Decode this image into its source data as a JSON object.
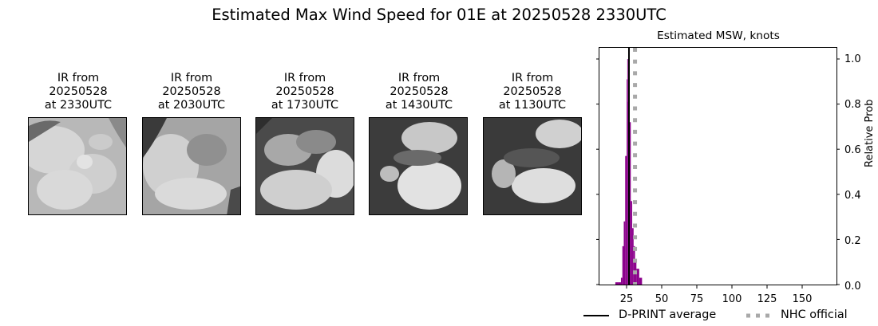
{
  "figure": {
    "title": "Estimated Max Wind Speed for 01E at 20250528 2330UTC"
  },
  "thumbnails": [
    {
      "line1": "IR from",
      "line2": "20250528",
      "line3": "at 2330UTC"
    },
    {
      "line1": "IR from",
      "line2": "20250528",
      "line3": "at 2030UTC"
    },
    {
      "line1": "IR from",
      "line2": "20250528",
      "line3": "at 1730UTC"
    },
    {
      "line1": "IR from",
      "line2": "20250528",
      "line3": "at 1430UTC"
    },
    {
      "line1": "IR from",
      "line2": "20250528",
      "line3": "at 1130UTC"
    }
  ],
  "chart_data": {
    "type": "bar",
    "title": "Estimated MSW, knots",
    "xlabel": "",
    "ylabel": "Relative Prob",
    "xlim": [
      5,
      175
    ],
    "ylim": [
      0,
      1.05
    ],
    "xticks": [
      25,
      50,
      75,
      100,
      125,
      150
    ],
    "xtick_labels": [
      "25",
      "50",
      "75",
      "100",
      "125",
      "150"
    ],
    "yticks": [
      0.0,
      0.2,
      0.4,
      0.6,
      0.8,
      1.0
    ],
    "ytick_labels": [
      "0.0",
      "0.2",
      "0.4",
      "0.6",
      "0.8",
      "1.0"
    ],
    "yaxis_position": "right",
    "grid": false,
    "bar_color": "#8b008b",
    "bins": [
      {
        "x0": 17,
        "x1": 19,
        "value": 0.01
      },
      {
        "x0": 19,
        "x1": 21,
        "value": 0.01
      },
      {
        "x0": 21,
        "x1": 22,
        "value": 0.03
      },
      {
        "x0": 22,
        "x1": 23,
        "value": 0.17
      },
      {
        "x0": 23,
        "x1": 24,
        "value": 0.28
      },
      {
        "x0": 24,
        "x1": 25,
        "value": 0.57
      },
      {
        "x0": 25,
        "x1": 25.5,
        "value": 0.91
      },
      {
        "x0": 25.5,
        "x1": 26,
        "value": 1.0
      },
      {
        "x0": 26,
        "x1": 27,
        "value": 0.81
      },
      {
        "x0": 27,
        "x1": 28,
        "value": 0.72
      },
      {
        "x0": 28,
        "x1": 29,
        "value": 0.37
      },
      {
        "x0": 29,
        "x1": 30,
        "value": 0.25
      },
      {
        "x0": 30,
        "x1": 31,
        "value": 0.17
      },
      {
        "x0": 31,
        "x1": 32,
        "value": 0.11
      },
      {
        "x0": 32,
        "x1": 34,
        "value": 0.07
      },
      {
        "x0": 34,
        "x1": 36,
        "value": 0.03
      }
    ],
    "lines": [
      {
        "name": "D-PRINT average",
        "x": 26.7,
        "style": "solid",
        "color": "#000000"
      },
      {
        "name": "NHC official",
        "x": 31,
        "style": "dotted",
        "color": "#a9a9a9"
      }
    ],
    "legend": {
      "position": "bottom",
      "entries": [
        "D-PRINT average",
        "NHC official"
      ]
    }
  }
}
